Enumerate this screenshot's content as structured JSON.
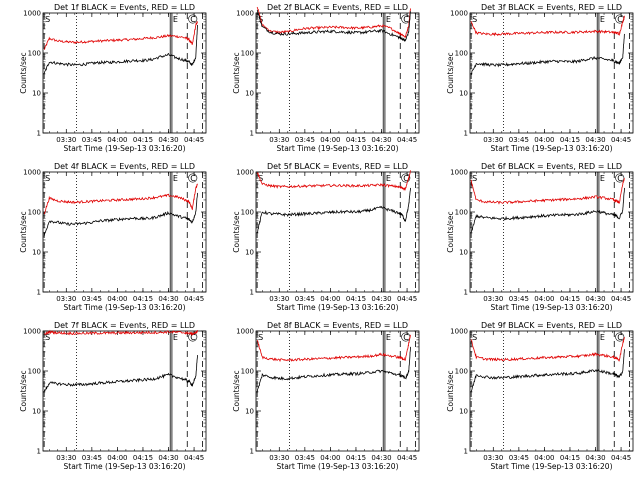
{
  "chart_data": {
    "type": "line",
    "y_scale": "log",
    "ylim": [
      1,
      1000
    ],
    "xlim": [
      "03:16:20",
      "04:52:00"
    ],
    "colors": {
      "events": "#000000",
      "lld": "#e00000"
    },
    "x_tick_labels": [
      "03:30",
      "03:45",
      "04:00",
      "04:15",
      "04:30",
      "04:45"
    ],
    "y_tick_labels": [
      "1",
      "10",
      "100",
      "1000"
    ],
    "xlabel": "Start Time (19-Sep-13 03:16:20)",
    "ylabel": "Counts/sec",
    "markers": {
      "start": "S",
      "end": "E",
      "center": "C"
    },
    "marker_lines": {
      "dashed": [
        "03:17",
        "04:41",
        "04:50"
      ],
      "dotted": [
        "03:36"
      ],
      "solid": [
        "04:31",
        "04:32"
      ]
    },
    "series_x": [
      "03:17",
      "03:20",
      "03:25",
      "03:30",
      "03:35",
      "03:40",
      "03:45",
      "03:50",
      "03:55",
      "04:00",
      "04:05",
      "04:10",
      "04:15",
      "04:20",
      "04:25",
      "04:30",
      "04:35",
      "04:40",
      "04:42",
      "04:44",
      "04:46",
      "04:47"
    ],
    "panels": [
      {
        "title": "Det 1f BLACK = Events, RED = LLD",
        "events": [
          30,
          60,
          55,
          52,
          50,
          52,
          55,
          58,
          58,
          60,
          62,
          65,
          65,
          68,
          80,
          90,
          75,
          65,
          60,
          50,
          80,
          500
        ],
        "lld": [
          120,
          230,
          200,
          190,
          185,
          190,
          195,
          200,
          205,
          210,
          215,
          220,
          230,
          240,
          250,
          270,
          260,
          240,
          220,
          160,
          500,
          600
        ]
      },
      {
        "title": "Det 2f BLACK = Events, RED = LLD",
        "events": [
          1200,
          450,
          330,
          300,
          300,
          310,
          320,
          330,
          340,
          350,
          340,
          330,
          320,
          330,
          350,
          360,
          300,
          250,
          230,
          200,
          350,
          1100
        ],
        "lld": [
          1500,
          500,
          350,
          330,
          340,
          380,
          410,
          420,
          430,
          440,
          440,
          430,
          420,
          430,
          450,
          480,
          420,
          320,
          290,
          250,
          500,
          1300
        ]
      },
      {
        "title": "Det 3f BLACK = Events, RED = LLD",
        "events": [
          30,
          55,
          52,
          50,
          50,
          52,
          55,
          55,
          58,
          60,
          62,
          62,
          60,
          62,
          70,
          75,
          70,
          65,
          60,
          55,
          80,
          300
        ],
        "lld": [
          600,
          320,
          300,
          295,
          300,
          305,
          310,
          315,
          320,
          325,
          330,
          330,
          330,
          335,
          340,
          350,
          340,
          330,
          320,
          300,
          600,
          850
        ]
      },
      {
        "title": "Det 4f BLACK = Events, RED = LLD",
        "events": [
          25,
          60,
          55,
          50,
          50,
          52,
          55,
          60,
          62,
          65,
          68,
          70,
          68,
          70,
          80,
          95,
          80,
          70,
          65,
          55,
          100,
          300
        ],
        "lld": [
          90,
          220,
          190,
          180,
          175,
          180,
          185,
          190,
          195,
          200,
          205,
          210,
          215,
          225,
          240,
          260,
          240,
          200,
          180,
          120,
          400,
          500
        ]
      },
      {
        "title": "Det 5f BLACK = Events, RED = LLD",
        "events": [
          30,
          100,
          90,
          88,
          85,
          88,
          90,
          92,
          95,
          98,
          100,
          102,
          100,
          105,
          115,
          130,
          110,
          95,
          85,
          60,
          150,
          400
        ],
        "lld": [
          1000,
          500,
          450,
          430,
          430,
          440,
          445,
          450,
          455,
          460,
          460,
          455,
          450,
          455,
          465,
          480,
          450,
          430,
          400,
          380,
          700,
          1100
        ]
      },
      {
        "title": "Det 6f BLACK = Events, RED = LLD",
        "events": [
          30,
          80,
          72,
          70,
          68,
          70,
          72,
          75,
          78,
          80,
          82,
          85,
          85,
          88,
          95,
          105,
          95,
          85,
          80,
          70,
          110,
          400
        ],
        "lld": [
          600,
          200,
          180,
          175,
          172,
          175,
          180,
          185,
          190,
          195,
          200,
          205,
          210,
          215,
          225,
          240,
          225,
          205,
          190,
          170,
          500,
          700
        ]
      },
      {
        "title": "Det 7f BLACK = Events, RED = LLD",
        "events": [
          30,
          50,
          48,
          46,
          45,
          46,
          48,
          50,
          52,
          54,
          56,
          58,
          60,
          62,
          70,
          80,
          70,
          60,
          55,
          45,
          70,
          250
        ],
        "lld": [
          800,
          950,
          900,
          880,
          870,
          875,
          880,
          885,
          890,
          895,
          900,
          905,
          910,
          915,
          920,
          950,
          930,
          900,
          880,
          850,
          900,
          1000
        ]
      },
      {
        "title": "Det 8f BLACK = Events, RED = LLD",
        "events": [
          30,
          80,
          70,
          65,
          65,
          68,
          72,
          75,
          78,
          80,
          82,
          85,
          85,
          88,
          95,
          100,
          90,
          80,
          75,
          65,
          100,
          400
        ],
        "lld": [
          600,
          220,
          200,
          190,
          188,
          192,
          196,
          200,
          205,
          210,
          215,
          220,
          225,
          230,
          240,
          260,
          240,
          220,
          210,
          190,
          500,
          800
        ]
      },
      {
        "title": "Det 9f BLACK = Events, RED = LLD",
        "events": [
          30,
          80,
          72,
          68,
          68,
          70,
          72,
          75,
          78,
          80,
          82,
          85,
          85,
          88,
          95,
          105,
          95,
          85,
          80,
          70,
          100,
          350
        ],
        "lld": [
          600,
          220,
          200,
          195,
          192,
          195,
          200,
          205,
          210,
          215,
          220,
          225,
          230,
          235,
          245,
          265,
          245,
          225,
          210,
          190,
          500,
          700
        ]
      }
    ]
  }
}
